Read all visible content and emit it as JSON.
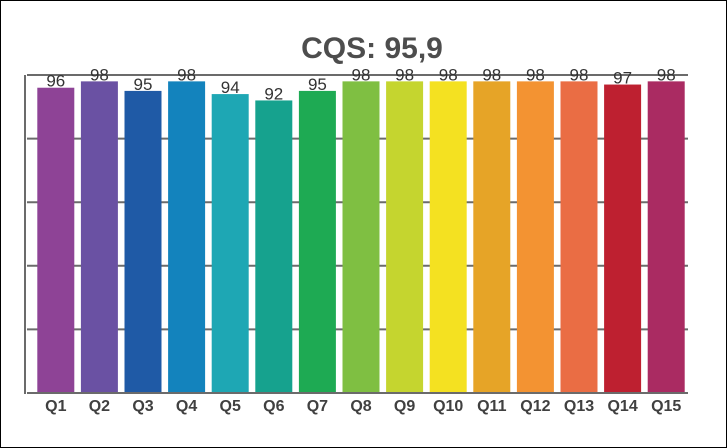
{
  "chart_data": {
    "type": "bar",
    "title": "CQS: 95,9",
    "categories": [
      "Q1",
      "Q2",
      "Q3",
      "Q4",
      "Q5",
      "Q6",
      "Q7",
      "Q8",
      "Q9",
      "Q10",
      "Q11",
      "Q12",
      "Q13",
      "Q14",
      "Q15"
    ],
    "values": [
      96,
      98,
      95,
      98,
      94,
      92,
      95,
      98,
      98,
      98,
      98,
      98,
      98,
      97,
      98
    ],
    "colors": [
      "#8e4396",
      "#6a51a3",
      "#1f5aa6",
      "#1383bd",
      "#1ea7b4",
      "#16a28e",
      "#1eaa53",
      "#7fbf42",
      "#c5d52f",
      "#f4e121",
      "#e6a427",
      "#f39332",
      "#ea6d44",
      "#be2030",
      "#aa2b62"
    ],
    "ylim": [
      0,
      100
    ],
    "grid": true,
    "xlabel": "",
    "ylabel": ""
  }
}
